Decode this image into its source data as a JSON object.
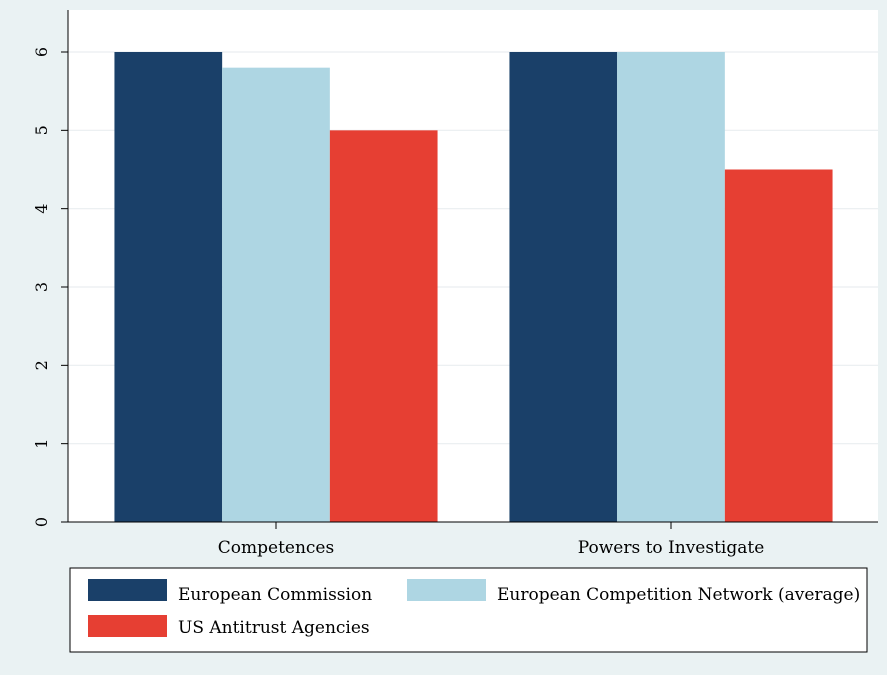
{
  "chart_data": {
    "type": "bar",
    "title": "",
    "xlabel": "",
    "ylabel": "",
    "categories": [
      "Competences",
      "Powers to Investigate"
    ],
    "series": [
      {
        "name": "European Commission",
        "values": [
          6,
          6
        ],
        "color": "#1a4069"
      },
      {
        "name": "European Competition Network (average)",
        "values": [
          5.8,
          6
        ],
        "color": "#aed6e3"
      },
      {
        "name": "US Antitrust Agencies",
        "values": [
          5,
          4.5
        ],
        "color": "#e63f33"
      }
    ],
    "ylim": [
      0,
      6
    ],
    "yticks": [
      "0",
      "1",
      "2",
      "3",
      "4",
      "5",
      "6"
    ],
    "grid": true,
    "legend_position": "bottom"
  }
}
